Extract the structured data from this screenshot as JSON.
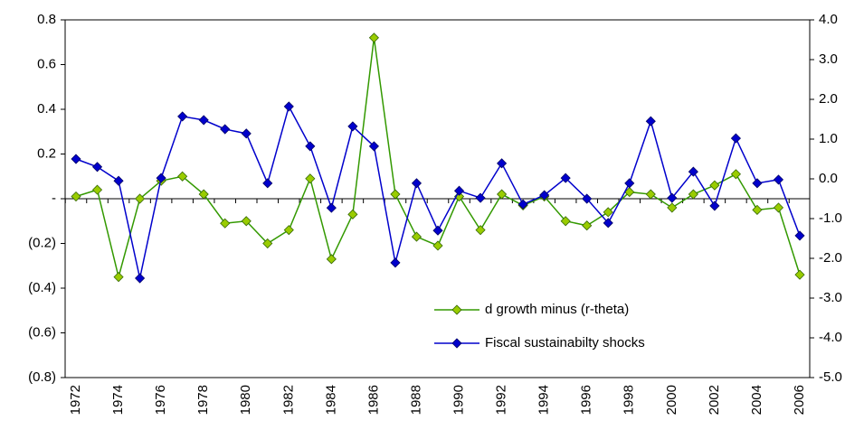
{
  "chart_data": {
    "type": "line",
    "categories": [
      1972,
      null,
      1974,
      null,
      1976,
      null,
      1978,
      null,
      1980,
      null,
      1982,
      null,
      1984,
      null,
      1986,
      null,
      1988,
      null,
      1990,
      null,
      1992,
      null,
      1994,
      null,
      1996,
      null,
      1998,
      null,
      2000,
      null,
      2002,
      null,
      2004,
      null,
      2006
    ],
    "series": [
      {
        "name": "d growth minus (r-theta)",
        "color": "#339900",
        "marker_color": "#99cc00",
        "values": [
          0.01,
          0.04,
          -0.35,
          0.0,
          0.08,
          0.1,
          0.02,
          -0.11,
          -0.1,
          -0.2,
          -0.14,
          0.09,
          -0.27,
          -0.07,
          0.72,
          0.02,
          -0.17,
          -0.21,
          0.01,
          -0.14,
          0.02,
          -0.03,
          0.01,
          -0.1,
          -0.12,
          -0.06,
          0.03,
          0.02,
          -0.04,
          0.02,
          0.06,
          0.11,
          -0.05,
          -0.04,
          -0.34
        ]
      },
      {
        "name": "Fiscal sustainabilty shocks",
        "color": "#0000cc",
        "marker_color": "#0000cc",
        "axis": "y2",
        "values": [
          0.5,
          0.3,
          -0.05,
          -2.5,
          0.02,
          1.57,
          1.48,
          1.25,
          1.14,
          -0.11,
          1.82,
          0.82,
          -0.73,
          1.32,
          0.82,
          -2.11,
          -0.11,
          -1.3,
          -0.3,
          -0.48,
          0.39,
          -0.64,
          -0.41,
          0.02,
          -0.5,
          -1.11,
          -0.11,
          1.45,
          -0.48,
          0.18,
          -0.68,
          1.02,
          -0.11,
          -0.02,
          -1.43
        ]
      }
    ],
    "ylim": [
      -0.8,
      0.8
    ],
    "yticks": [
      {
        "value": -0.8,
        "label": "(0.8)"
      },
      {
        "value": -0.6,
        "label": "(0.6)"
      },
      {
        "value": -0.4,
        "label": "(0.4)"
      },
      {
        "value": -0.2,
        "label": "(0.2)"
      },
      {
        "value": 0,
        "label": "-"
      },
      0.2,
      0.4,
      0.6,
      0.8
    ],
    "y2lim": [
      -5,
      4
    ],
    "y2ticks": [
      {
        "value": -5,
        "label": "-5.0"
      },
      {
        "value": -4,
        "label": "-4.0"
      },
      {
        "value": -3,
        "label": "-3.0"
      },
      {
        "value": -2,
        "label": "-2.0"
      },
      {
        "value": -1,
        "label": "-1.0"
      },
      {
        "value": 0,
        "label": "0.0"
      },
      {
        "value": 1,
        "label": "1.0"
      },
      {
        "value": 2,
        "label": "2.0"
      },
      {
        "value": 3,
        "label": "3.0"
      },
      {
        "value": 4,
        "label": "4.0"
      }
    ],
    "legend": "lower-right"
  }
}
